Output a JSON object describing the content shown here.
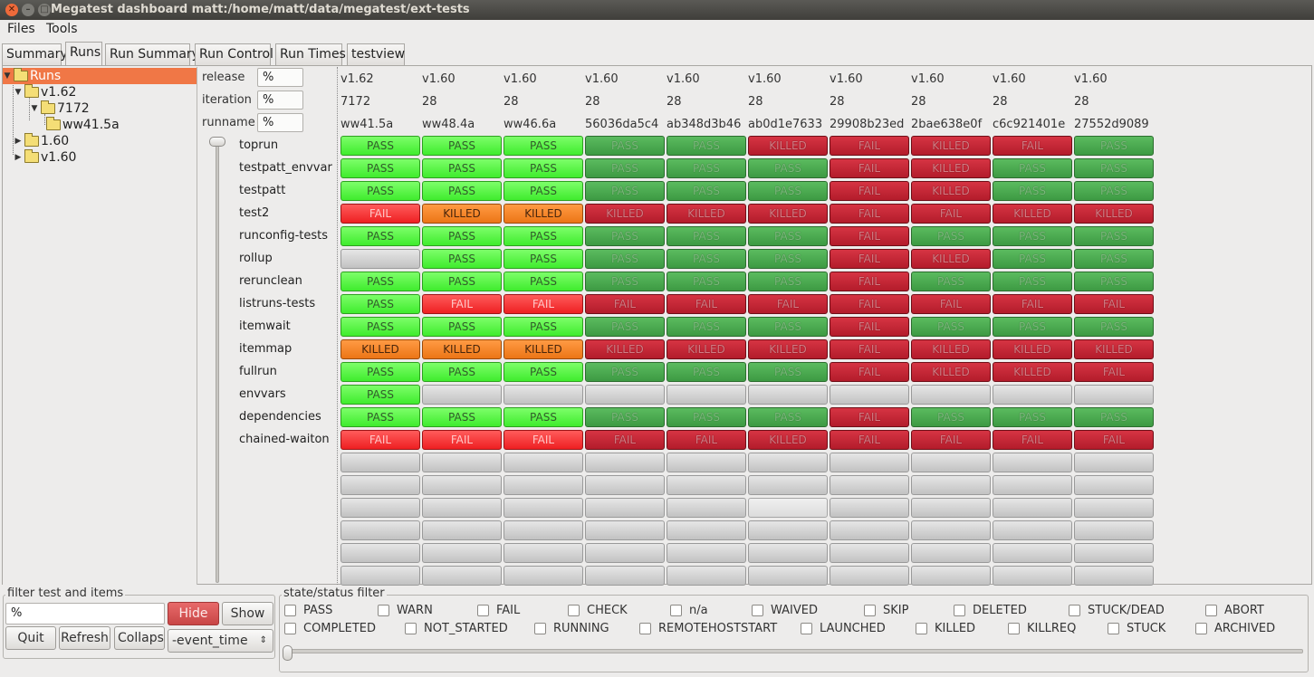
{
  "window": {
    "title": "Megatest dashboard matt:/home/matt/data/megatest/ext-tests"
  },
  "menu": [
    "Files",
    "Tools"
  ],
  "tabs": [
    "Summary",
    "Runs",
    "Run Summary",
    "Run Control",
    "Run Times",
    "testview"
  ],
  "active_tab": "Runs",
  "tree": {
    "root": "Runs",
    "nodes": [
      "v1.62",
      "7172",
      "ww41.5a",
      "1.60",
      "v1.60"
    ]
  },
  "keys": [
    {
      "label": "release",
      "value": "%"
    },
    {
      "label": "iteration",
      "value": "%"
    },
    {
      "label": "runname",
      "value": "%"
    }
  ],
  "runs": [
    {
      "release": "v1.62",
      "iteration": "7172",
      "runname": "ww41.5a"
    },
    {
      "release": "v1.60",
      "iteration": "28",
      "runname": "ww48.4a"
    },
    {
      "release": "v1.60",
      "iteration": "28",
      "runname": "ww46.6a"
    },
    {
      "release": "v1.60",
      "iteration": "28",
      "runname": "56036da5c4"
    },
    {
      "release": "v1.60",
      "iteration": "28",
      "runname": "ab348d3b46"
    },
    {
      "release": "v1.60",
      "iteration": "28",
      "runname": "ab0d1e7633"
    },
    {
      "release": "v1.60",
      "iteration": "28",
      "runname": "29908b23ed"
    },
    {
      "release": "v1.60",
      "iteration": "28",
      "runname": "2bae638e0f"
    },
    {
      "release": "v1.60",
      "iteration": "28",
      "runname": "c6c921401e"
    },
    {
      "release": "v1.60",
      "iteration": "28",
      "runname": "27552d9089"
    }
  ],
  "tests": [
    "toprun",
    "testpatt_envvar",
    "testpatt",
    "test2",
    "runconfig-tests",
    "rollup",
    "rerunclean",
    "listruns-tests",
    "itemwait",
    "itemmap",
    "fullrun",
    "envvars",
    "dependencies",
    "chained-waiton"
  ],
  "grid": [
    [
      "PASS",
      "PASS",
      "PASS",
      "PASS",
      "PASS",
      "KILLED",
      "FAIL",
      "KILLED",
      "FAIL",
      "PASS"
    ],
    [
      "PASS",
      "PASS",
      "PASS",
      "PASS",
      "PASS",
      "PASS",
      "FAIL",
      "KILLED",
      "PASS",
      "PASS"
    ],
    [
      "PASS",
      "PASS",
      "PASS",
      "PASS",
      "PASS",
      "PASS",
      "FAIL",
      "KILLED",
      "PASS",
      "PASS"
    ],
    [
      "FAIL",
      "KILLED",
      "KILLED",
      "KILLED",
      "KILLED",
      "KILLED",
      "FAIL",
      "FAIL",
      "KILLED",
      "KILLED"
    ],
    [
      "PASS",
      "PASS",
      "PASS",
      "PASS",
      "PASS",
      "PASS",
      "FAIL",
      "PASS",
      "PASS",
      "PASS"
    ],
    [
      "",
      "PASS",
      "PASS",
      "PASS",
      "PASS",
      "PASS",
      "FAIL",
      "KILLED",
      "PASS",
      "PASS"
    ],
    [
      "PASS",
      "PASS",
      "PASS",
      "PASS",
      "PASS",
      "PASS",
      "FAIL",
      "PASS",
      "PASS",
      "PASS"
    ],
    [
      "PASS",
      "FAIL",
      "FAIL",
      "FAIL",
      "FAIL",
      "FAIL",
      "FAIL",
      "FAIL",
      "FAIL",
      "FAIL"
    ],
    [
      "PASS",
      "PASS",
      "PASS",
      "PASS",
      "PASS",
      "PASS",
      "FAIL",
      "PASS",
      "PASS",
      "PASS"
    ],
    [
      "KILLED",
      "KILLED",
      "KILLED",
      "KILLED",
      "KILLED",
      "KILLED",
      "FAIL",
      "KILLED",
      "KILLED",
      "KILLED"
    ],
    [
      "PASS",
      "PASS",
      "PASS",
      "PASS",
      "PASS",
      "PASS",
      "FAIL",
      "KILLED",
      "KILLED",
      "FAIL"
    ],
    [
      "PASS",
      "",
      "",
      "",
      "",
      "",
      "",
      "",
      "",
      ""
    ],
    [
      "PASS",
      "PASS",
      "PASS",
      "PASS",
      "PASS",
      "PASS",
      "FAIL",
      "PASS",
      "PASS",
      "PASS"
    ],
    [
      "FAIL",
      "FAIL",
      "FAIL",
      "FAIL",
      "FAIL",
      "KILLED",
      "FAIL",
      "FAIL",
      "FAIL",
      "FAIL"
    ]
  ],
  "dim_from_column": 3,
  "colors": {
    "pass": "#4cf43a",
    "fail": "#f22b2e",
    "killed": "#f0832a",
    "pass_dim": "#48a84d",
    "fail_dim": "#c02434",
    "selected": "#f07746"
  },
  "filter": {
    "legend": "filter test and items",
    "input_value": "%",
    "hide_label": "Hide",
    "show_label": "Show",
    "quit_label": "Quit",
    "refresh_label": "Refresh",
    "collapse_label": "Collapse",
    "sort_value": "-event_time"
  },
  "state_filter": {
    "legend": "state/status filter",
    "row1": [
      "PASS",
      "WARN",
      "FAIL",
      "CHECK",
      "n/a",
      "WAIVED",
      "SKIP",
      "DELETED",
      "STUCK/DEAD",
      "ABORT"
    ],
    "row2": [
      "COMPLETED",
      "NOT_STARTED",
      "RUNNING",
      "REMOTEHOSTSTART",
      "LAUNCHED",
      "KILLED",
      "KILLREQ",
      "STUCK",
      "ARCHIVED"
    ]
  }
}
